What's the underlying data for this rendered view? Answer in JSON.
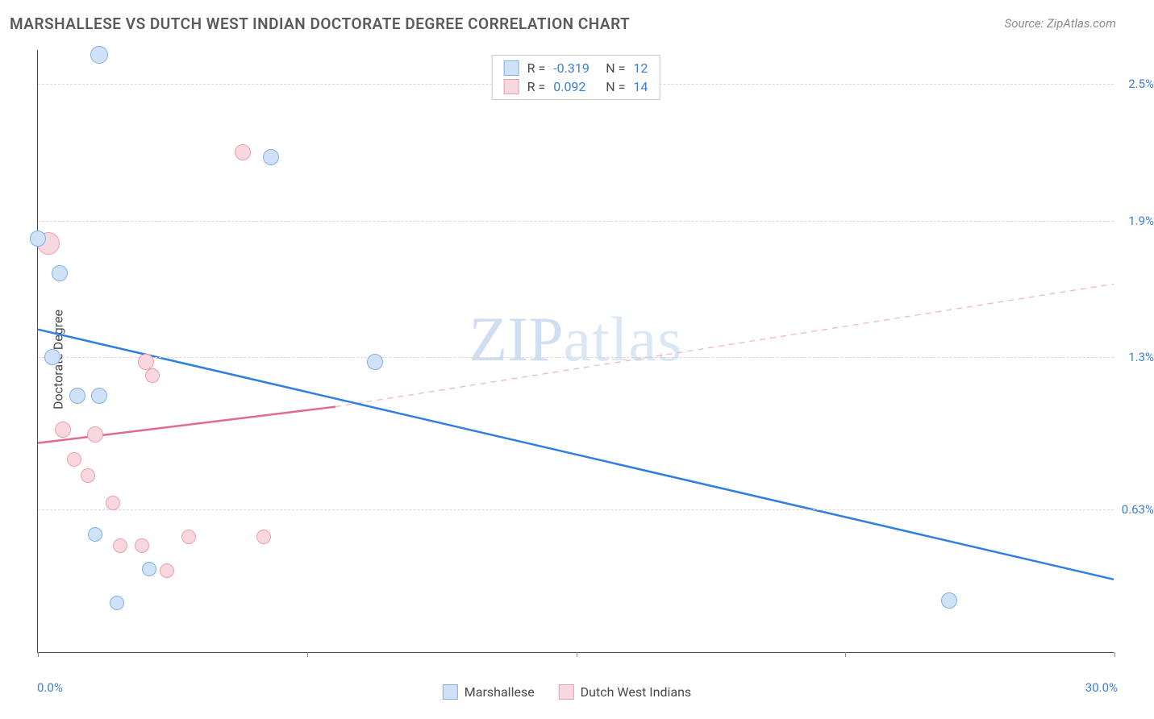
{
  "title": "MARSHALLESE VS DUTCH WEST INDIAN DOCTORATE DEGREE CORRELATION CHART",
  "source": "Source: ZipAtlas.com",
  "y_axis_label": "Doctorate Degree",
  "watermark_a": "ZIP",
  "watermark_b": "atlas",
  "chart": {
    "type": "scatter-with-trend",
    "x_min": 0.0,
    "x_max": 30.0,
    "y_min": 0.0,
    "y_max": 2.65,
    "background_color": "#ffffff",
    "grid_color": "#d8d8d8",
    "axis_color": "#4a4a4a",
    "y_ticks": [
      {
        "value": 2.5,
        "label": "2.5%"
      },
      {
        "value": 1.9,
        "label": "1.9%"
      },
      {
        "value": 1.3,
        "label": "1.3%"
      },
      {
        "value": 0.63,
        "label": "0.63%"
      }
    ],
    "x_ticks_minor": [
      0,
      7.5,
      15,
      22.5,
      30
    ],
    "x_tick_left": {
      "value": 0.0,
      "label": "0.0%"
    },
    "x_tick_right": {
      "value": 30.0,
      "label": "30.0%"
    }
  },
  "series": {
    "marshallese": {
      "label": "Marshallese",
      "fill": "#cfe2f7",
      "stroke": "#7fb1e6",
      "r_value": "-0.319",
      "n_value": "12",
      "trend": {
        "color": "#2f7fe0",
        "width": 2.5,
        "dash": "none",
        "x1": 0.0,
        "y1": 1.42,
        "x2": 30.0,
        "y2": 0.32
      },
      "points": [
        {
          "x": 1.7,
          "y": 2.63,
          "r": 11
        },
        {
          "x": 6.5,
          "y": 2.18,
          "r": 10
        },
        {
          "x": 0.0,
          "y": 1.82,
          "r": 10
        },
        {
          "x": 0.6,
          "y": 1.67,
          "r": 10
        },
        {
          "x": 0.4,
          "y": 1.3,
          "r": 10
        },
        {
          "x": 9.4,
          "y": 1.28,
          "r": 10
        },
        {
          "x": 1.1,
          "y": 1.13,
          "r": 10
        },
        {
          "x": 1.7,
          "y": 1.13,
          "r": 10
        },
        {
          "x": 1.6,
          "y": 0.52,
          "r": 9
        },
        {
          "x": 3.1,
          "y": 0.37,
          "r": 9
        },
        {
          "x": 2.2,
          "y": 0.22,
          "r": 9
        },
        {
          "x": 25.4,
          "y": 0.23,
          "r": 10
        }
      ]
    },
    "dutch_west_indians": {
      "label": "Dutch West Indians",
      "fill": "#f9d7de",
      "stroke": "#e99fb1",
      "r_value": "0.092",
      "n_value": "14",
      "trend_solid": {
        "color": "#e16b8e",
        "width": 2.5,
        "x1": 0.0,
        "y1": 0.92,
        "x2": 8.3,
        "y2": 1.08
      },
      "trend_dash": {
        "color": "#f0b7c4",
        "width": 1.3,
        "x1": 8.3,
        "y1": 1.08,
        "x2": 30.0,
        "y2": 1.62
      },
      "points": [
        {
          "x": 5.7,
          "y": 2.2,
          "r": 10
        },
        {
          "x": 0.3,
          "y": 1.8,
          "r": 14
        },
        {
          "x": 3.0,
          "y": 1.28,
          "r": 10
        },
        {
          "x": 3.2,
          "y": 1.22,
          "r": 9
        },
        {
          "x": 0.7,
          "y": 0.98,
          "r": 10
        },
        {
          "x": 1.6,
          "y": 0.96,
          "r": 10
        },
        {
          "x": 1.0,
          "y": 0.85,
          "r": 9
        },
        {
          "x": 1.4,
          "y": 0.78,
          "r": 9
        },
        {
          "x": 2.1,
          "y": 0.66,
          "r": 9
        },
        {
          "x": 4.2,
          "y": 0.51,
          "r": 9
        },
        {
          "x": 2.3,
          "y": 0.47,
          "r": 9
        },
        {
          "x": 2.9,
          "y": 0.47,
          "r": 9
        },
        {
          "x": 6.3,
          "y": 0.51,
          "r": 9
        },
        {
          "x": 3.6,
          "y": 0.36,
          "r": 9
        }
      ]
    }
  },
  "legend_top": {
    "r_label": "R =",
    "n_label": "N ="
  }
}
